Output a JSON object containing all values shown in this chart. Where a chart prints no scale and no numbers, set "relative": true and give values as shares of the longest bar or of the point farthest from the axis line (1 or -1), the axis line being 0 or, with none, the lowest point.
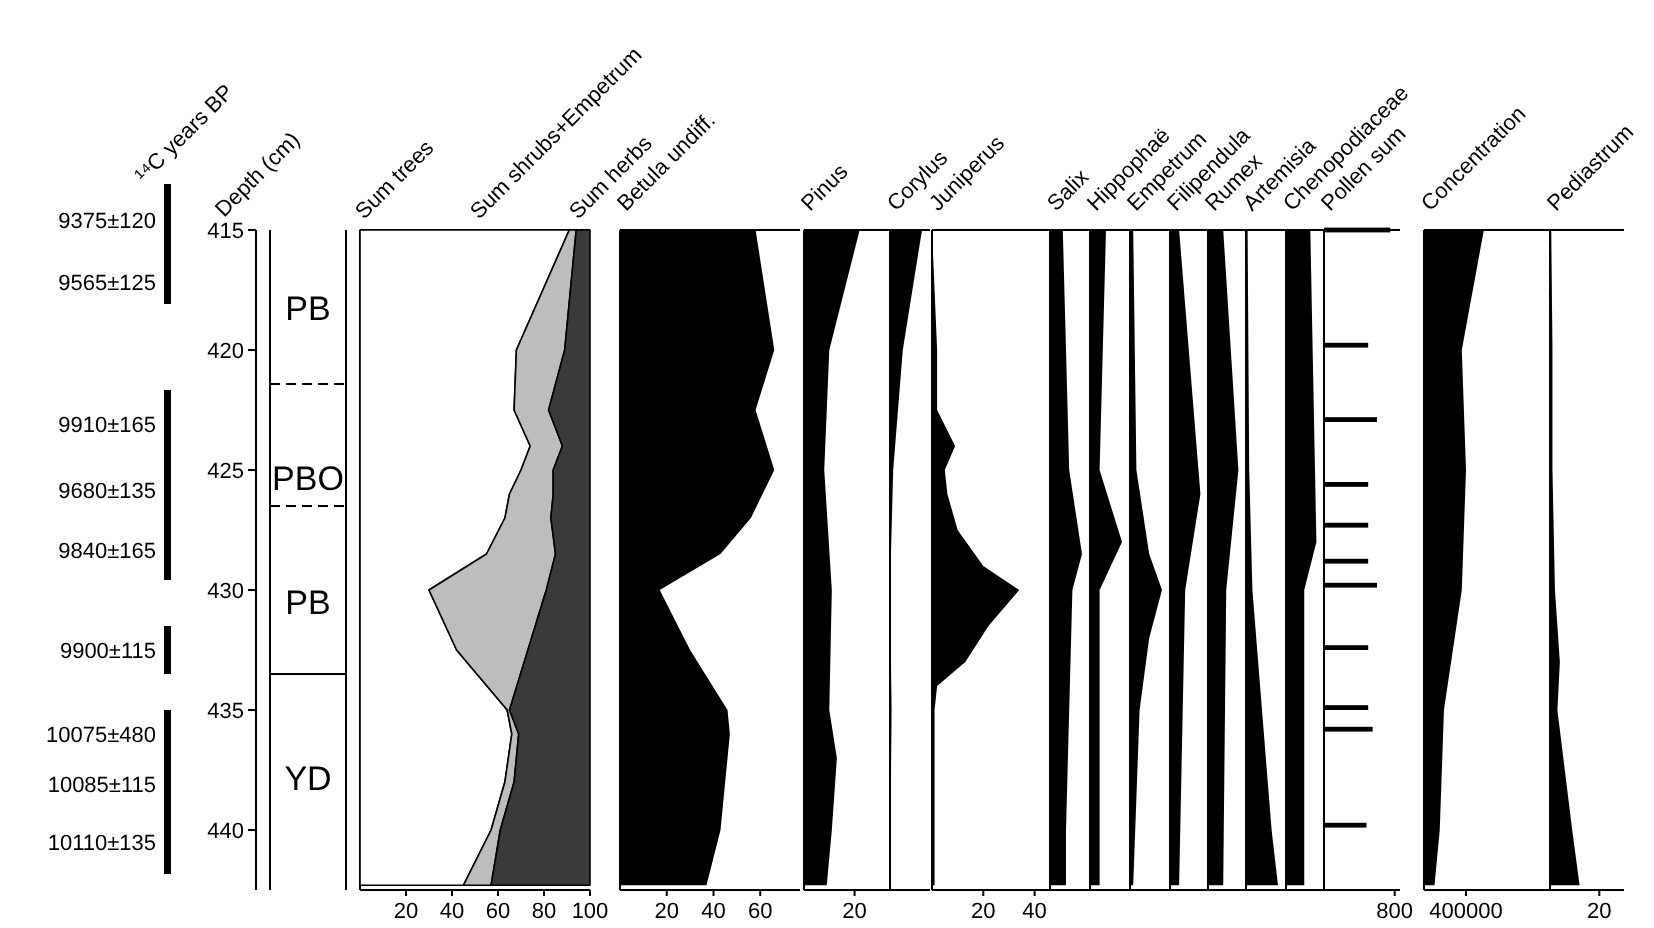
{
  "chart_data": [
    {
      "type": "area",
      "stacked": true,
      "orientation": "horizontal",
      "ylabel": "Depth (cm)",
      "x": [
        415,
        420,
        422.5,
        424,
        425,
        426,
        427,
        428.5,
        430,
        432.5,
        435,
        436,
        438,
        440,
        442.3
      ],
      "series": [
        {
          "name": "Sum trees",
          "color": "#ffffff",
          "values": [
            91,
            68,
            67,
            74,
            70,
            65,
            63,
            55,
            30,
            42,
            64,
            66,
            63,
            57,
            45
          ]
        },
        {
          "name": "Sum shrubs+Empetrum",
          "color": "#bdbdbd",
          "values": [
            3,
            21,
            15,
            14,
            14,
            19,
            20,
            30,
            51,
            31,
            1,
            3,
            4,
            4,
            12
          ]
        },
        {
          "name": "Sum herbs",
          "color": "#3a3a3a",
          "values": [
            6,
            11,
            18,
            12,
            16,
            16,
            17,
            15,
            19,
            27,
            35,
            31,
            33,
            39,
            43
          ]
        }
      ],
      "xlim": [
        0,
        100
      ],
      "xticks": [
        20,
        40,
        60,
        80,
        100
      ],
      "ylim": [
        442.5,
        415
      ],
      "yticks": [
        415,
        420,
        425,
        430,
        435,
        440
      ],
      "annotations": [
        "¹⁴C years BP",
        "9375±120",
        "9565±125",
        "9910±165",
        "9680±135",
        "9840±165",
        "9900±115",
        "10075±480",
        "10085±115",
        "10110±135",
        "PB",
        "PBO",
        "PB",
        "YD"
      ]
    },
    {
      "type": "area",
      "orientation": "horizontal",
      "title": "Betula undiff.",
      "color": "#000000",
      "x": [
        415,
        420,
        422.5,
        425,
        426,
        427,
        428.5,
        430,
        432.5,
        435,
        436,
        438,
        440,
        442.3
      ],
      "values": [
        58,
        66,
        58,
        66,
        61,
        56,
        43,
        17,
        30,
        46,
        47,
        45,
        43,
        37
      ],
      "xlim": [
        0,
        77
      ],
      "xticks": [
        20,
        40,
        60
      ],
      "ylim": [
        442.5,
        415
      ],
      "tick_labels": "x"
    },
    {
      "type": "area",
      "orientation": "horizontal",
      "title": "Pinus",
      "color": "#000000",
      "x": [
        415,
        420,
        425,
        430,
        435,
        437,
        440,
        442.3
      ],
      "values": [
        22,
        10,
        8,
        11,
        10,
        13,
        11,
        9
      ],
      "xlim": [
        0,
        34
      ],
      "xticks": [
        20
      ],
      "ylim": [
        442.5,
        415
      ],
      "tick_labels": "x"
    },
    {
      "type": "area",
      "orientation": "horizontal",
      "relative": true,
      "title": "Corylus",
      "color": "#000000",
      "x": [
        415,
        420,
        425,
        430,
        435,
        442.3
      ],
      "values": [
        1,
        0.4,
        0.1,
        0,
        0.05,
        0
      ],
      "ylim": [
        442.5,
        415
      ],
      "tick_labels": false
    },
    {
      "type": "area",
      "orientation": "horizontal",
      "title": "Juniperus",
      "color": "#000000",
      "x": [
        415,
        420,
        422.5,
        424,
        425,
        426,
        427.5,
        429,
        430,
        431.5,
        433,
        434,
        435,
        442.3
      ],
      "values": [
        0,
        2,
        2,
        9,
        5,
        6,
        10,
        20,
        34,
        22,
        13,
        2,
        1,
        1
      ],
      "xlim": [
        0,
        46
      ],
      "xticks": [
        20,
        40
      ],
      "ylim": [
        442.5,
        415
      ],
      "tick_labels": "x"
    },
    {
      "type": "area",
      "orientation": "horizontal",
      "relative": true,
      "title": "Salix",
      "color": "#000000",
      "x": [
        415,
        420,
        425,
        428.5,
        430,
        435,
        440,
        442.3
      ],
      "values": [
        0.4,
        0.5,
        0.6,
        1,
        0.7,
        0.6,
        0.5,
        0.5
      ],
      "ylim": [
        442.5,
        415
      ],
      "tick_labels": false
    },
    {
      "type": "area",
      "orientation": "horizontal",
      "relative": true,
      "title": "Hippophaë",
      "color": "#000000",
      "x": [
        415,
        425,
        428,
        430,
        442.3
      ],
      "values": [
        0.5,
        0.3,
        1,
        0.3,
        0.3
      ],
      "ylim": [
        442.5,
        415
      ],
      "tick_labels": false
    },
    {
      "type": "area",
      "orientation": "horizontal",
      "relative": true,
      "title": "Empetrum",
      "color": "#000000",
      "x": [
        415,
        420,
        425,
        428.5,
        430,
        432,
        435,
        442.3
      ],
      "values": [
        0.1,
        0.15,
        0.2,
        0.6,
        1,
        0.6,
        0.3,
        0.1
      ],
      "ylim": [
        442.5,
        415
      ],
      "tick_labels": false
    },
    {
      "type": "area",
      "orientation": "horizontal",
      "relative": true,
      "title": "Filipendula",
      "color": "#000000",
      "x": [
        415,
        426,
        430,
        442.3
      ],
      "values": [
        0.3,
        1,
        0.5,
        0.3
      ],
      "ylim": [
        442.5,
        415
      ],
      "tick_labels": false
    },
    {
      "type": "area",
      "orientation": "horizontal",
      "relative": true,
      "title": "Rumex",
      "color": "#000000",
      "x": [
        415,
        425,
        430,
        442.3
      ],
      "values": [
        0.5,
        1,
        0.6,
        0.5
      ],
      "ylim": [
        442.5,
        415
      ],
      "tick_labels": false
    },
    {
      "type": "area",
      "orientation": "horizontal",
      "relative": true,
      "title": "Artemisia",
      "color": "#000000",
      "x": [
        415,
        425,
        430,
        435,
        440,
        442.3
      ],
      "values": [
        0.05,
        0.1,
        0.2,
        0.5,
        0.8,
        1
      ],
      "ylim": [
        442.5,
        415
      ],
      "tick_labels": false
    },
    {
      "type": "area",
      "orientation": "horizontal",
      "relative": true,
      "title": "Chenopodiaceae",
      "color": "#000000",
      "x": [
        415,
        428,
        430,
        442.3
      ],
      "values": [
        0.8,
        1,
        0.6,
        0.6
      ],
      "ylim": [
        442.5,
        415
      ],
      "tick_labels": false
    },
    {
      "type": "bar",
      "orientation": "horizontal",
      "title": "Pollen sum",
      "color": "#000000",
      "x": [
        415,
        419.8,
        422.9,
        425.6,
        427.3,
        428.8,
        429.8,
        432.4,
        434.9,
        435.8,
        439.8
      ],
      "values": [
        750,
        500,
        600,
        500,
        500,
        500,
        600,
        500,
        500,
        550,
        480
      ],
      "xlim": [
        0,
        860
      ],
      "xticks": [
        800
      ],
      "ylim": [
        442.5,
        415
      ],
      "tick_labels": "x"
    },
    {
      "type": "area",
      "orientation": "horizontal",
      "title": "Concentration",
      "color": "#000000",
      "x": [
        415,
        420,
        425,
        430,
        435,
        440,
        442.3
      ],
      "values": [
        570000,
        360000,
        400000,
        360000,
        190000,
        150000,
        100000
      ],
      "xlim": [
        0,
        1200000
      ],
      "xticks": [
        400000
      ],
      "ylim": [
        442.5,
        415
      ],
      "tick_labels": "x"
    },
    {
      "type": "area",
      "orientation": "horizontal",
      "title": "Pediastrum",
      "color": "#000000",
      "x": [
        415,
        420,
        425,
        430,
        433,
        435,
        440,
        442.3
      ],
      "values": [
        0.5,
        1,
        1,
        2,
        4,
        3,
        9,
        12
      ],
      "xlim": [
        0,
        30
      ],
      "xticks": [
        20
      ],
      "ylim": [
        442.5,
        415
      ],
      "tick_labels": "x"
    }
  ]
}
